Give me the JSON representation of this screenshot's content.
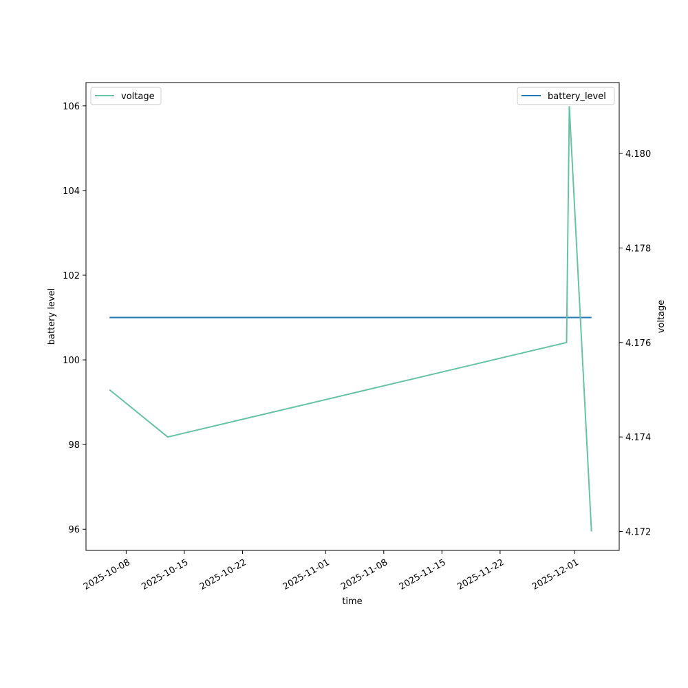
{
  "chart_data": {
    "type": "line",
    "xlabel": "time",
    "ylabel_left": "battery level",
    "ylabel_right": "voltage",
    "x_ticks": [
      "2025-10-08",
      "2025-10-15",
      "2025-10-22",
      "2025-11-01",
      "2025-11-08",
      "2025-11-15",
      "2025-11-22",
      "2025-12-01"
    ],
    "left_axis": {
      "ylim": [
        95.5,
        106.55
      ],
      "ticks": [
        {
          "v": 96,
          "label": "96"
        },
        {
          "v": 98,
          "label": "98"
        },
        {
          "v": 100,
          "label": "100"
        },
        {
          "v": 102,
          "label": "102"
        },
        {
          "v": 104,
          "label": "104"
        },
        {
          "v": 106,
          "label": "106"
        }
      ]
    },
    "right_axis": {
      "ylim": [
        4.1716,
        4.1815
      ],
      "ticks": [
        {
          "v": 4.172,
          "label": "4.172"
        },
        {
          "v": 4.174,
          "label": "4.174"
        },
        {
          "v": 4.176,
          "label": "4.176"
        },
        {
          "v": 4.178,
          "label": "4.178"
        },
        {
          "v": 4.18,
          "label": "4.180"
        }
      ]
    },
    "series": [
      {
        "name": "battery_level",
        "axis": "left",
        "color": "#1f77b4",
        "x": [
          "2025-10-06",
          "2025-12-03"
        ],
        "y": [
          101,
          101
        ]
      },
      {
        "name": "voltage",
        "axis": "right",
        "color": "#66c2a5",
        "x": [
          "2025-10-06",
          "2025-10-13",
          "2025-11-30",
          "2025-11-30T08:00",
          "2025-12-03"
        ],
        "y": [
          4.175,
          4.174,
          4.176,
          4.181,
          4.172
        ]
      }
    ],
    "legends": [
      {
        "position": "upper-left",
        "entries": [
          "voltage"
        ]
      },
      {
        "position": "upper-right",
        "entries": [
          "battery_level"
        ]
      }
    ]
  }
}
